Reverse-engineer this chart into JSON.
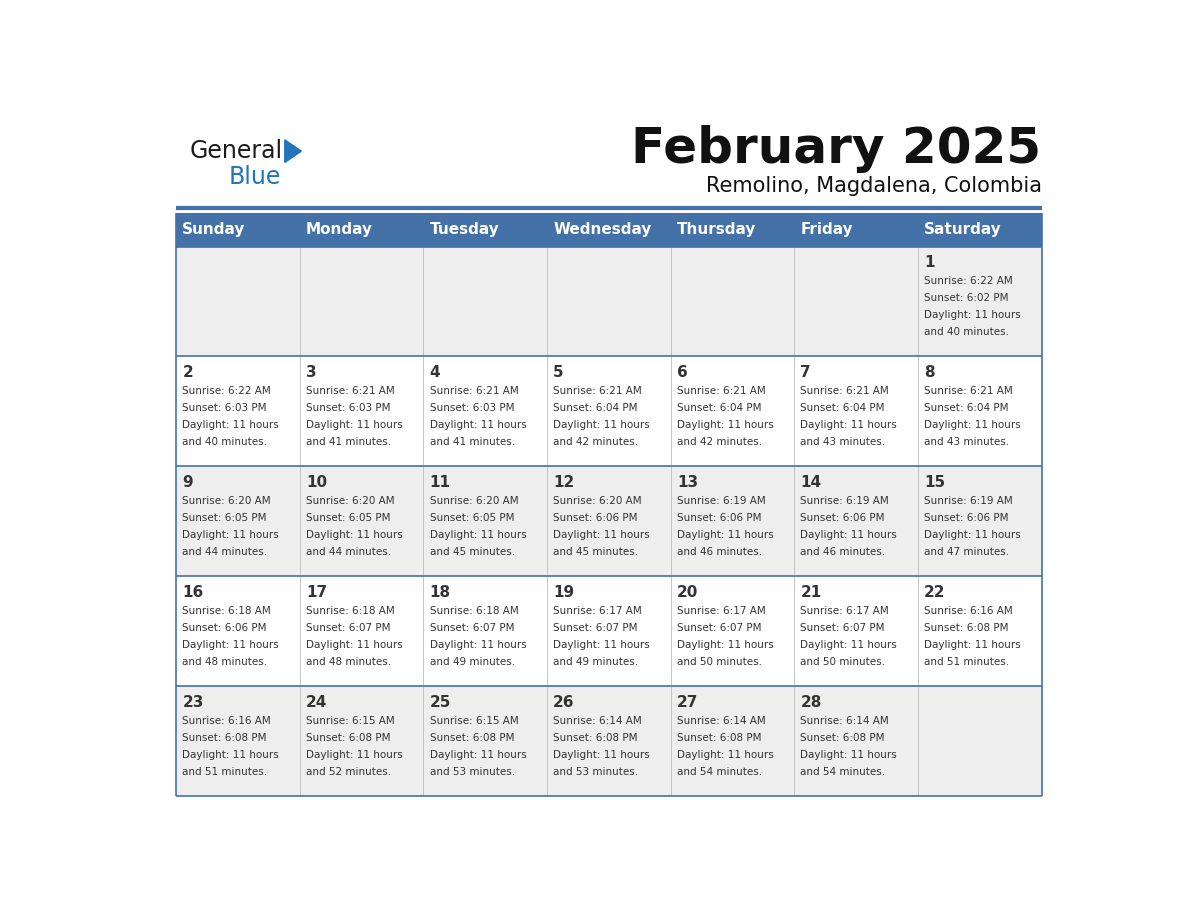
{
  "title": "February 2025",
  "subtitle": "Remolino, Magdalena, Colombia",
  "header_color": "#4472a8",
  "header_text_color": "#ffffff",
  "day_names": [
    "Sunday",
    "Monday",
    "Tuesday",
    "Wednesday",
    "Thursday",
    "Friday",
    "Saturday"
  ],
  "background_color": "#ffffff",
  "cell_bg_odd": "#eeeeee",
  "cell_bg_even": "#ffffff",
  "border_color": "#4472a8",
  "text_color": "#333333",
  "days": [
    {
      "day": 1,
      "col": 6,
      "row": 0,
      "sunrise": "6:22 AM",
      "sunset": "6:02 PM",
      "daylight": "11 hours and 40 minutes"
    },
    {
      "day": 2,
      "col": 0,
      "row": 1,
      "sunrise": "6:22 AM",
      "sunset": "6:03 PM",
      "daylight": "11 hours and 40 minutes"
    },
    {
      "day": 3,
      "col": 1,
      "row": 1,
      "sunrise": "6:21 AM",
      "sunset": "6:03 PM",
      "daylight": "11 hours and 41 minutes"
    },
    {
      "day": 4,
      "col": 2,
      "row": 1,
      "sunrise": "6:21 AM",
      "sunset": "6:03 PM",
      "daylight": "11 hours and 41 minutes"
    },
    {
      "day": 5,
      "col": 3,
      "row": 1,
      "sunrise": "6:21 AM",
      "sunset": "6:04 PM",
      "daylight": "11 hours and 42 minutes"
    },
    {
      "day": 6,
      "col": 4,
      "row": 1,
      "sunrise": "6:21 AM",
      "sunset": "6:04 PM",
      "daylight": "11 hours and 42 minutes"
    },
    {
      "day": 7,
      "col": 5,
      "row": 1,
      "sunrise": "6:21 AM",
      "sunset": "6:04 PM",
      "daylight": "11 hours and 43 minutes"
    },
    {
      "day": 8,
      "col": 6,
      "row": 1,
      "sunrise": "6:21 AM",
      "sunset": "6:04 PM",
      "daylight": "11 hours and 43 minutes"
    },
    {
      "day": 9,
      "col": 0,
      "row": 2,
      "sunrise": "6:20 AM",
      "sunset": "6:05 PM",
      "daylight": "11 hours and 44 minutes"
    },
    {
      "day": 10,
      "col": 1,
      "row": 2,
      "sunrise": "6:20 AM",
      "sunset": "6:05 PM",
      "daylight": "11 hours and 44 minutes"
    },
    {
      "day": 11,
      "col": 2,
      "row": 2,
      "sunrise": "6:20 AM",
      "sunset": "6:05 PM",
      "daylight": "11 hours and 45 minutes"
    },
    {
      "day": 12,
      "col": 3,
      "row": 2,
      "sunrise": "6:20 AM",
      "sunset": "6:06 PM",
      "daylight": "11 hours and 45 minutes"
    },
    {
      "day": 13,
      "col": 4,
      "row": 2,
      "sunrise": "6:19 AM",
      "sunset": "6:06 PM",
      "daylight": "11 hours and 46 minutes"
    },
    {
      "day": 14,
      "col": 5,
      "row": 2,
      "sunrise": "6:19 AM",
      "sunset": "6:06 PM",
      "daylight": "11 hours and 46 minutes"
    },
    {
      "day": 15,
      "col": 6,
      "row": 2,
      "sunrise": "6:19 AM",
      "sunset": "6:06 PM",
      "daylight": "11 hours and 47 minutes"
    },
    {
      "day": 16,
      "col": 0,
      "row": 3,
      "sunrise": "6:18 AM",
      "sunset": "6:06 PM",
      "daylight": "11 hours and 48 minutes"
    },
    {
      "day": 17,
      "col": 1,
      "row": 3,
      "sunrise": "6:18 AM",
      "sunset": "6:07 PM",
      "daylight": "11 hours and 48 minutes"
    },
    {
      "day": 18,
      "col": 2,
      "row": 3,
      "sunrise": "6:18 AM",
      "sunset": "6:07 PM",
      "daylight": "11 hours and 49 minutes"
    },
    {
      "day": 19,
      "col": 3,
      "row": 3,
      "sunrise": "6:17 AM",
      "sunset": "6:07 PM",
      "daylight": "11 hours and 49 minutes"
    },
    {
      "day": 20,
      "col": 4,
      "row": 3,
      "sunrise": "6:17 AM",
      "sunset": "6:07 PM",
      "daylight": "11 hours and 50 minutes"
    },
    {
      "day": 21,
      "col": 5,
      "row": 3,
      "sunrise": "6:17 AM",
      "sunset": "6:07 PM",
      "daylight": "11 hours and 50 minutes"
    },
    {
      "day": 22,
      "col": 6,
      "row": 3,
      "sunrise": "6:16 AM",
      "sunset": "6:08 PM",
      "daylight": "11 hours and 51 minutes"
    },
    {
      "day": 23,
      "col": 0,
      "row": 4,
      "sunrise": "6:16 AM",
      "sunset": "6:08 PM",
      "daylight": "11 hours and 51 minutes"
    },
    {
      "day": 24,
      "col": 1,
      "row": 4,
      "sunrise": "6:15 AM",
      "sunset": "6:08 PM",
      "daylight": "11 hours and 52 minutes"
    },
    {
      "day": 25,
      "col": 2,
      "row": 4,
      "sunrise": "6:15 AM",
      "sunset": "6:08 PM",
      "daylight": "11 hours and 53 minutes"
    },
    {
      "day": 26,
      "col": 3,
      "row": 4,
      "sunrise": "6:14 AM",
      "sunset": "6:08 PM",
      "daylight": "11 hours and 53 minutes"
    },
    {
      "day": 27,
      "col": 4,
      "row": 4,
      "sunrise": "6:14 AM",
      "sunset": "6:08 PM",
      "daylight": "11 hours and 54 minutes"
    },
    {
      "day": 28,
      "col": 5,
      "row": 4,
      "sunrise": "6:14 AM",
      "sunset": "6:08 PM",
      "daylight": "11 hours and 54 minutes"
    }
  ]
}
